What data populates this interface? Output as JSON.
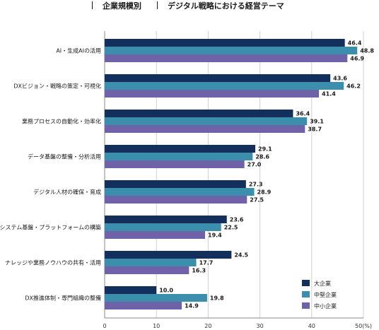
{
  "header": {
    "left_label": "企業規模別",
    "right_label": "デジタル戦略における経営テーマ"
  },
  "chart_data": {
    "type": "bar",
    "orientation": "horizontal",
    "categories": [
      "AI・生成AIの活用",
      "DXビジョン・戦略の策定・可視化",
      "業務プロセスの自動化・効率化",
      "データ基盤の整備・分析活用",
      "デジタル人材の確保・育成",
      "システム基盤・プラットフォームの構築",
      "ナレッジや業務ノウハウの共有・活用",
      "DX推進体制・専門組織の整備"
    ],
    "series": [
      {
        "name": "大企業",
        "color": "#13305c",
        "values": [
          46.4,
          43.6,
          36.4,
          29.1,
          27.3,
          23.6,
          24.5,
          10.0
        ]
      },
      {
        "name": "中堅企業",
        "color": "#3b8fad",
        "values": [
          48.8,
          46.2,
          39.1,
          28.6,
          28.9,
          22.5,
          17.7,
          19.8
        ]
      },
      {
        "name": "中小企業",
        "color": "#7062a8",
        "values": [
          46.9,
          41.4,
          38.7,
          27.0,
          27.5,
          19.4,
          16.3,
          14.9
        ]
      }
    ],
    "xlim": [
      0,
      50
    ],
    "xticks": [
      "0",
      "10",
      "20",
      "30",
      "40",
      "50(%)"
    ],
    "grid": true,
    "legend_position": "bottom-right"
  }
}
